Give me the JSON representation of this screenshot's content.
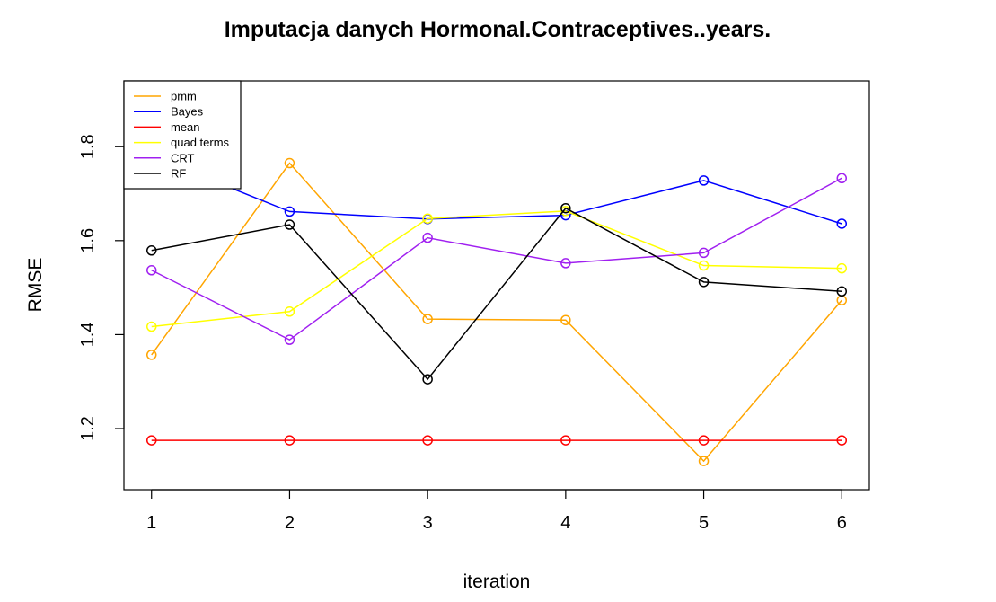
{
  "chart_data": {
    "type": "line",
    "title": "Imputacja danych Hormonal.Contraceptives..years.",
    "xlabel": "iteration",
    "ylabel": "RMSE",
    "x": [
      1,
      2,
      3,
      4,
      5,
      6
    ],
    "xlim": [
      0.8,
      6.2
    ],
    "ylim": [
      1.07,
      1.94
    ],
    "x_ticks": [
      "1",
      "2",
      "3",
      "4",
      "5",
      "6"
    ],
    "y_ticks": [
      "1.2",
      "1.4",
      "1.6",
      "1.8"
    ],
    "legend_position": "top-left",
    "series": [
      {
        "name": "pmm",
        "color": "#FFA500",
        "values": [
          1.357,
          1.765,
          1.433,
          1.431,
          1.131,
          1.473
        ]
      },
      {
        "name": "Bayes",
        "color": "#0000FF",
        "values": [
          1.78,
          1.662,
          1.646,
          1.654,
          1.728,
          1.636
        ]
      },
      {
        "name": "mean",
        "color": "#FF0000",
        "values": [
          1.175,
          1.175,
          1.175,
          1.175,
          1.175,
          1.175
        ]
      },
      {
        "name": "quad terms",
        "color": "#FFFF00",
        "values": [
          1.417,
          1.449,
          1.647,
          1.663,
          1.547,
          1.541
        ]
      },
      {
        "name": "CRT",
        "color": "#A020F0",
        "values": [
          1.537,
          1.389,
          1.606,
          1.552,
          1.574,
          1.733
        ]
      },
      {
        "name": "RF",
        "color": "#000000",
        "values": [
          1.579,
          1.634,
          1.305,
          1.669,
          1.512,
          1.492
        ]
      }
    ]
  }
}
